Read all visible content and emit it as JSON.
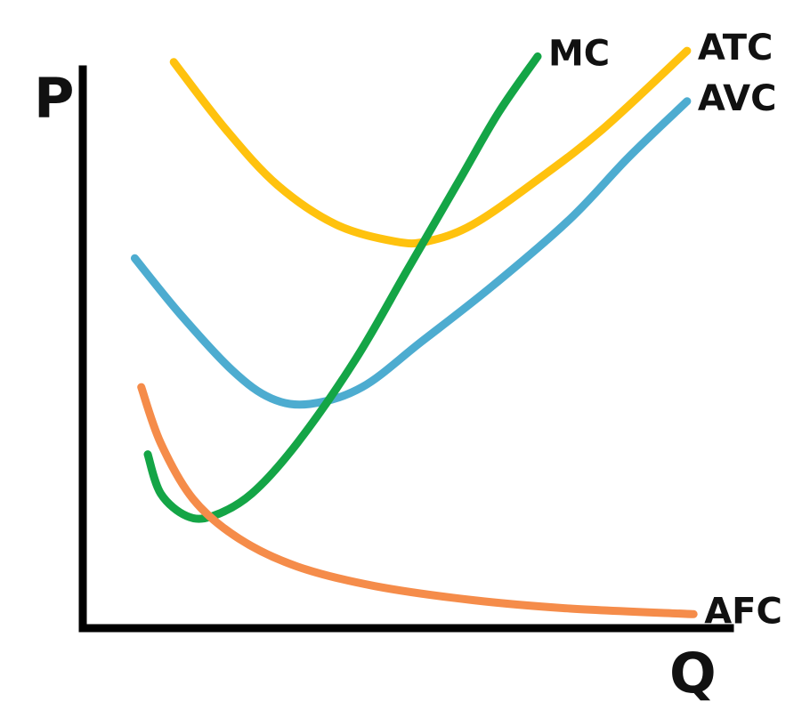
{
  "chart_data": {
    "type": "line",
    "xlabel": "Q",
    "ylabel": "P",
    "xlim": [
      0,
      10
    ],
    "ylim": [
      0,
      10
    ],
    "grid": false,
    "legend": "none",
    "series": [
      {
        "name": "ATC",
        "color": "#FFC20E",
        "points": [
          [
            1.4,
            10.1
          ],
          [
            2.2,
            8.9
          ],
          [
            3.0,
            7.9
          ],
          [
            3.9,
            7.2
          ],
          [
            4.8,
            6.9
          ],
          [
            5.3,
            6.9
          ],
          [
            6.0,
            7.2
          ],
          [
            7.0,
            8.0
          ],
          [
            8.0,
            8.9
          ],
          [
            9.3,
            10.3
          ]
        ]
      },
      {
        "name": "AVC",
        "color": "#4DACD0",
        "points": [
          [
            0.8,
            6.6
          ],
          [
            1.5,
            5.6
          ],
          [
            2.3,
            4.6
          ],
          [
            2.9,
            4.1
          ],
          [
            3.5,
            4.0
          ],
          [
            4.3,
            4.3
          ],
          [
            5.2,
            5.1
          ],
          [
            6.3,
            6.1
          ],
          [
            7.5,
            7.3
          ],
          [
            8.4,
            8.4
          ],
          [
            9.3,
            9.4
          ]
        ]
      },
      {
        "name": "MC",
        "color": "#14A546",
        "points": [
          [
            1.0,
            3.1
          ],
          [
            1.2,
            2.4
          ],
          [
            1.6,
            2.0
          ],
          [
            2.0,
            2.0
          ],
          [
            2.6,
            2.4
          ],
          [
            3.3,
            3.3
          ],
          [
            4.2,
            4.8
          ],
          [
            5.0,
            6.4
          ],
          [
            5.8,
            8.0
          ],
          [
            6.4,
            9.2
          ],
          [
            7.0,
            10.2
          ]
        ]
      },
      {
        "name": "AFC",
        "color": "#F58C4A",
        "points": [
          [
            0.9,
            4.3
          ],
          [
            1.2,
            3.3
          ],
          [
            1.7,
            2.3
          ],
          [
            2.4,
            1.6
          ],
          [
            3.3,
            1.1
          ],
          [
            4.5,
            0.75
          ],
          [
            6.0,
            0.5
          ],
          [
            7.5,
            0.35
          ],
          [
            9.4,
            0.25
          ]
        ]
      }
    ]
  }
}
